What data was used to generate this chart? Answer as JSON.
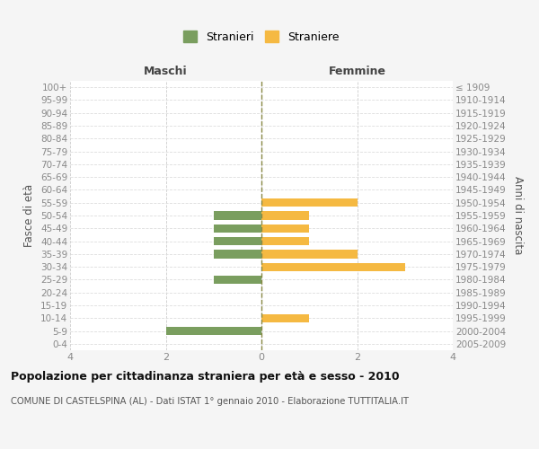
{
  "age_groups": [
    "0-4",
    "5-9",
    "10-14",
    "15-19",
    "20-24",
    "25-29",
    "30-34",
    "35-39",
    "40-44",
    "45-49",
    "50-54",
    "55-59",
    "60-64",
    "65-69",
    "70-74",
    "75-79",
    "80-84",
    "85-89",
    "90-94",
    "95-99",
    "100+"
  ],
  "birth_years": [
    "2005-2009",
    "2000-2004",
    "1995-1999",
    "1990-1994",
    "1985-1989",
    "1980-1984",
    "1975-1979",
    "1970-1974",
    "1965-1969",
    "1960-1964",
    "1955-1959",
    "1950-1954",
    "1945-1949",
    "1940-1944",
    "1935-1939",
    "1930-1934",
    "1925-1929",
    "1920-1924",
    "1915-1919",
    "1910-1914",
    "≤ 1909"
  ],
  "males": [
    0,
    2,
    0,
    0,
    0,
    1,
    0,
    1,
    1,
    1,
    1,
    0,
    0,
    0,
    0,
    0,
    0,
    0,
    0,
    0,
    0
  ],
  "females": [
    0,
    0,
    1,
    0,
    0,
    0,
    3,
    2,
    1,
    1,
    1,
    2,
    0,
    0,
    0,
    0,
    0,
    0,
    0,
    0,
    0
  ],
  "male_color": "#7a9e5f",
  "female_color": "#f5b942",
  "title": "Popolazione per cittadinanza straniera per età e sesso - 2010",
  "subtitle": "COMUNE DI CASTELSPINA (AL) - Dati ISTAT 1° gennaio 2010 - Elaborazione TUTTITALIA.IT",
  "xlabel_left": "Maschi",
  "xlabel_right": "Femmine",
  "ylabel_left": "Fasce di età",
  "ylabel_right": "Anni di nascita",
  "legend_male": "Stranieri",
  "legend_female": "Straniere",
  "xlim": 4,
  "background_color": "#f5f5f5",
  "bar_background": "#ffffff",
  "grid_color": "#cccccc",
  "grid_color2": "#dddddd"
}
